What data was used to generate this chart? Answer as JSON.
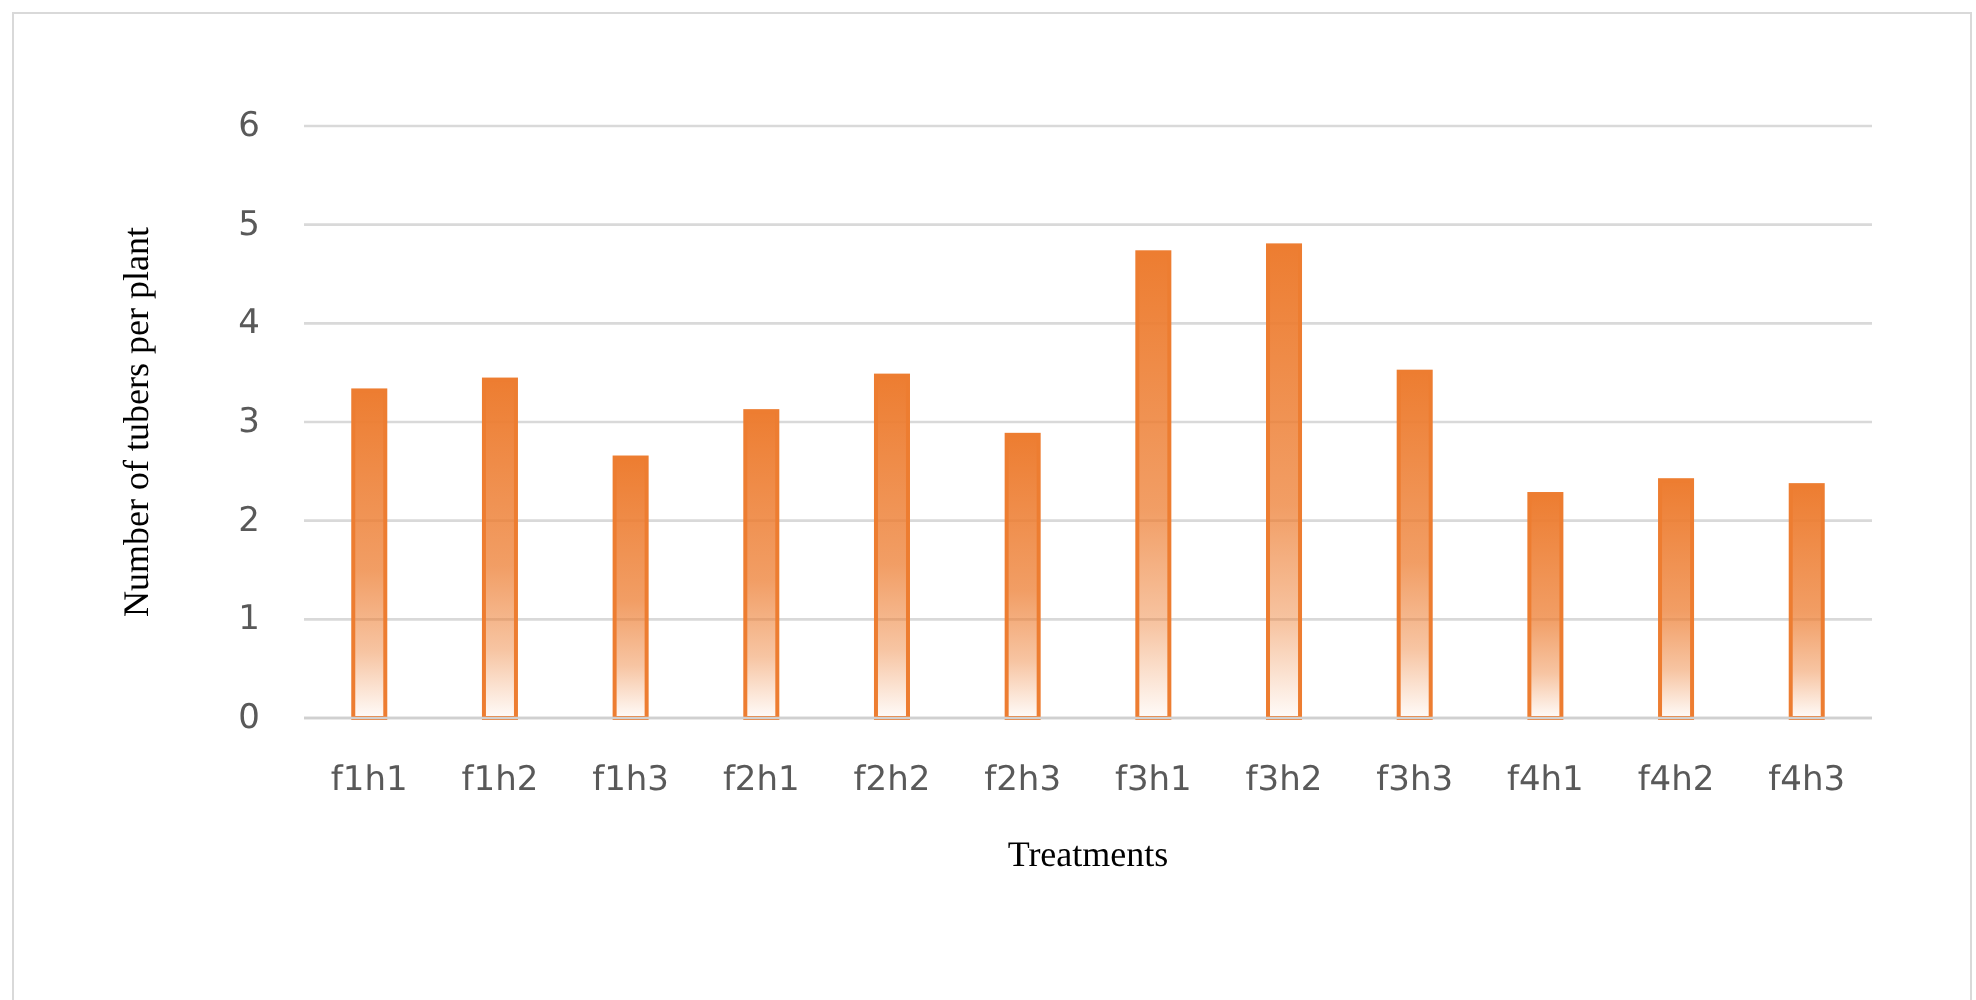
{
  "chart_data": {
    "type": "bar",
    "xlabel": "Treatments",
    "ylabel": "Number of tubers per plant",
    "categories": [
      "f1h1",
      "f1h2",
      "f1h3",
      "f2h1",
      "f2h2",
      "f2h3",
      "f3h1",
      "f3h2",
      "f3h3",
      "f4h1",
      "f4h2",
      "f4h3"
    ],
    "values": [
      3.32,
      3.43,
      2.64,
      3.11,
      3.47,
      2.87,
      4.72,
      4.79,
      3.51,
      2.27,
      2.41,
      2.36
    ],
    "color": "#ed7d31",
    "ylim": [
      0,
      6
    ],
    "yticks": [
      0,
      1,
      2,
      3,
      4,
      5,
      6
    ],
    "grid": "y"
  }
}
